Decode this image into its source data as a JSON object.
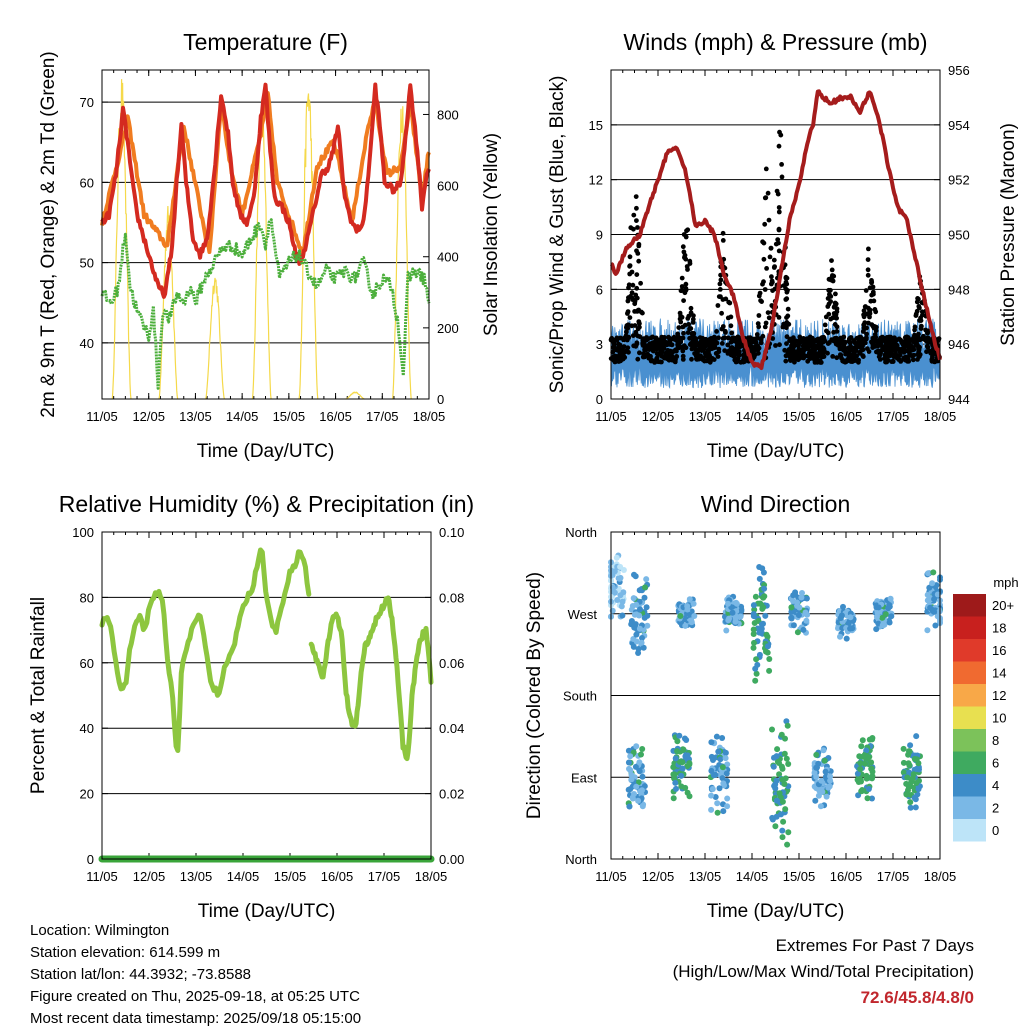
{
  "info": {
    "location": "Location: Wilmington",
    "elevation": "Station elevation: 614.599 m",
    "latlon": "Station lat/lon: 44.3932; -73.8588",
    "created": "Figure created on Thu, 2025-09-18, at 05:25 UTC",
    "recent": "Most recent data timestamp: 2025/09/18 05:15:00"
  },
  "extremes": {
    "title": "Extremes For Past 7 Days",
    "subtitle": "(High/Low/Max Wind/Total Precipitation)",
    "values": "72.6/45.8/4.8/0",
    "value_color": "#c1272d"
  },
  "x_ticks": [
    "11/05",
    "12/05",
    "13/05",
    "14/05",
    "15/05",
    "16/05",
    "17/05",
    "18/05"
  ],
  "chart_data": [
    {
      "type": "line",
      "title": "Temperature (F)",
      "xlabel": "Time (Day/UTC)",
      "ylabel": "2m & 9m T (Red, Orange) & 2m Td (Green)",
      "ylabel_right": "Solar Insolation (Yellow)",
      "ylim": [
        33,
        74
      ],
      "yticks": [
        40,
        50,
        60,
        70
      ],
      "ylim_right": [
        0,
        925
      ],
      "yticks_right": [
        0,
        200,
        400,
        600,
        800
      ],
      "x_range_days": [
        0,
        7
      ],
      "grid": true,
      "series": [
        {
          "color": "#d42a20",
          "x": [
            0,
            0.15,
            0.3,
            0.45,
            0.55,
            0.65,
            0.75,
            0.9,
            1.05,
            1.2,
            1.35,
            1.5,
            1.6,
            1.7,
            1.8,
            1.95,
            2.1,
            2.25,
            2.4,
            2.55,
            2.7,
            2.8,
            2.95,
            3.1,
            3.25,
            3.4,
            3.5,
            3.6,
            3.7,
            3.85,
            4.0,
            4.15,
            4.25,
            4.4,
            4.55,
            4.7,
            4.85,
            4.95,
            5.05,
            5.2,
            5.35,
            5.45,
            5.6,
            5.75,
            5.85,
            5.95,
            6.05,
            6.25,
            6.4,
            6.5,
            6.6,
            6.75,
            6.85,
            6.95,
            7.0
          ],
          "y": [
            55,
            56,
            61,
            69,
            65,
            60,
            56,
            53,
            50,
            47,
            46,
            52,
            60,
            67,
            60,
            53,
            51,
            53,
            61,
            71,
            66,
            60,
            56,
            55,
            58,
            68,
            72,
            64,
            58,
            57,
            55,
            51,
            50,
            53,
            57,
            61,
            62,
            64,
            67,
            58,
            55,
            54,
            55,
            64,
            72,
            67,
            60,
            59,
            60,
            66,
            72,
            64,
            57,
            61,
            62
          ]
        },
        {
          "color": "#f07c20",
          "x": [
            0,
            0.4,
            0.55,
            0.9,
            1.4,
            1.6,
            1.75,
            2.3,
            2.55,
            2.75,
            3.0,
            3.4,
            3.55,
            3.75,
            4.3,
            4.6,
            4.95,
            5.05,
            5.35,
            5.7,
            5.85,
            6.1,
            6.4,
            6.6,
            6.85,
            7.0
          ],
          "y": [
            55,
            64,
            68,
            56,
            52,
            61,
            67,
            51,
            70,
            62,
            56,
            66,
            71,
            60,
            51,
            62,
            65,
            63,
            55,
            67,
            70,
            61,
            62,
            70,
            58,
            64
          ]
        },
        {
          "color": "#4caf3c",
          "x": [
            0,
            0.2,
            0.35,
            0.5,
            0.6,
            0.75,
            0.9,
            1.0,
            1.1,
            1.2,
            1.3,
            1.45,
            1.6,
            1.75,
            1.9,
            2.0,
            2.2,
            2.4,
            2.6,
            2.8,
            3.0,
            3.2,
            3.4,
            3.5,
            3.6,
            3.8,
            4.0,
            4.2,
            4.4,
            4.6,
            4.8,
            5.0,
            5.2,
            5.4,
            5.6,
            5.8,
            6.0,
            6.2,
            6.35,
            6.45,
            6.55,
            6.7,
            6.9,
            7.0
          ],
          "y": [
            46,
            45,
            47,
            54,
            47,
            44,
            42,
            41,
            44,
            35,
            44,
            43,
            46,
            45,
            47,
            45,
            48,
            50,
            52,
            52,
            51,
            53,
            55,
            52,
            56,
            48,
            50,
            51,
            49,
            47,
            49,
            48,
            49,
            48,
            50,
            46,
            48,
            47,
            42,
            36,
            48,
            49,
            48,
            45
          ]
        }
      ],
      "insolation_peaks_days": [
        0.42,
        1.42,
        2.42,
        3.42,
        4.42,
        5.42,
        6.42
      ],
      "insolation_peak_values": [
        918,
        550,
        360,
        850,
        918,
        20,
        880
      ]
    },
    {
      "type": "scatter",
      "title": "Winds (mph) & Pressure (mb)",
      "xlabel": "Time (Day/UTC)",
      "ylabel": "Sonic/Prop Wind & Gust (Blue, Black)",
      "ylabel_right": "Station Pressure (Maroon)",
      "ylim": [
        0,
        18
      ],
      "yticks": [
        0,
        3,
        6,
        9,
        12,
        15
      ],
      "ylim_right": [
        944,
        956
      ],
      "yticks_right": [
        944,
        946,
        948,
        950,
        952,
        954,
        956
      ],
      "grid": true,
      "pressure": {
        "color": "#a51c1c",
        "x": [
          0,
          0.1,
          0.3,
          0.5,
          0.6,
          0.8,
          1.0,
          1.2,
          1.4,
          1.6,
          1.8,
          2.0,
          2.2,
          2.4,
          2.6,
          2.8,
          3.0,
          3.2,
          3.4,
          3.6,
          3.8,
          4.0,
          4.2,
          4.3,
          4.4,
          4.5,
          4.7,
          4.9,
          5.1,
          5.3,
          5.5,
          5.7,
          5.9,
          6.1,
          6.3,
          6.5,
          6.7,
          6.9,
          7.0
        ],
        "y": [
          949,
          948.5,
          949.4,
          949.8,
          949.9,
          951,
          952,
          953,
          953.2,
          952.2,
          950.3,
          950.5,
          950,
          948.6,
          947.8,
          946.3,
          945.3,
          945.2,
          946.4,
          948.5,
          950.5,
          951.8,
          953.5,
          954,
          955.2,
          955,
          954.8,
          955,
          955,
          954.5,
          955.2,
          954.2,
          952.5,
          951,
          950.5,
          949,
          947.4,
          946,
          945.5
        ]
      },
      "gust_color": "#000000",
      "wind_color": "#4a90d0",
      "gust_peaks": [
        {
          "day": 0.5,
          "max": 13.5
        },
        {
          "day": 1.6,
          "max": 11
        },
        {
          "day": 2.4,
          "max": 10
        },
        {
          "day": 3.3,
          "max": 14
        },
        {
          "day": 3.6,
          "max": 16
        },
        {
          "day": 4.7,
          "max": 8.5
        },
        {
          "day": 5.5,
          "max": 9
        },
        {
          "day": 6.6,
          "max": 7.5
        }
      ]
    },
    {
      "type": "line",
      "title": "Relative Humidity (%) & Precipitation (in)",
      "xlabel": "Time (Day/UTC)",
      "ylabel": "Percent & Total Rainfall",
      "ylim": [
        0,
        100
      ],
      "yticks": [
        0,
        20,
        40,
        60,
        80,
        100
      ],
      "ylim_right": [
        0,
        0.1
      ],
      "yticks_right": [
        "0.00",
        "0.02",
        "0.04",
        "0.06",
        "0.08",
        "0.10"
      ],
      "grid": true,
      "series": [
        {
          "color": "#8dc63f",
          "x": [
            0,
            0.1,
            0.2,
            0.3,
            0.4,
            0.5,
            0.6,
            0.7,
            0.8,
            0.9,
            1.0,
            1.1,
            1.2,
            1.3,
            1.4,
            1.5,
            1.6,
            1.7,
            1.8,
            1.9,
            2.0,
            2.1,
            2.2,
            2.3,
            2.4,
            2.5,
            2.6,
            2.7,
            2.8,
            2.9,
            3.0,
            3.1,
            3.2,
            3.3,
            3.4,
            3.5,
            3.6,
            3.7,
            3.8,
            3.9,
            4.0,
            4.1,
            4.2,
            4.3,
            4.4
          ],
          "y": [
            72,
            75,
            70,
            60,
            52,
            53,
            65,
            72,
            74,
            70,
            76,
            80,
            82,
            78,
            60,
            50,
            30,
            60,
            65,
            70,
            72,
            75,
            65,
            55,
            52,
            50,
            58,
            62,
            65,
            72,
            78,
            80,
            82,
            90,
            95,
            80,
            72,
            70,
            75,
            82,
            88,
            90,
            94,
            92,
            80
          ]
        },
        {
          "color": "#8dc63f",
          "x": [
            4.45,
            4.6,
            4.7,
            4.8,
            4.9,
            5.0,
            5.1,
            5.2,
            5.3,
            5.4,
            5.5,
            5.6,
            5.7,
            5.8,
            5.9,
            6.0,
            6.1,
            6.2,
            6.3,
            6.4,
            6.5,
            6.6,
            6.7,
            6.8,
            6.9,
            7.0
          ],
          "y": [
            65,
            60,
            55,
            65,
            73,
            75,
            68,
            50,
            42,
            40,
            55,
            65,
            68,
            72,
            75,
            78,
            80,
            70,
            55,
            35,
            30,
            50,
            62,
            68,
            70,
            55
          ]
        },
        {
          "color": "#3aa53a",
          "x": [
            0,
            7
          ],
          "y": [
            0,
            0
          ]
        }
      ]
    },
    {
      "type": "scatter",
      "title": "Wind Direction",
      "xlabel": "Time (Day/UTC)",
      "ylabel": "Direction (Colored By Speed)",
      "y_categories": [
        "North",
        "East",
        "South",
        "West",
        "North"
      ],
      "ylim": [
        0,
        360
      ],
      "grid": true,
      "colorbar": {
        "unit": "mph",
        "labels": [
          "20+",
          "18",
          "16",
          "14",
          "12",
          "10",
          "8",
          "6",
          "4",
          "2",
          "0"
        ],
        "colors": [
          "#9e1a1a",
          "#c8201e",
          "#e03a2a",
          "#f06a30",
          "#f8a848",
          "#e8e050",
          "#7cc25a",
          "#3faa60",
          "#3d8cc8",
          "#7ab8e6",
          "#bde4f8"
        ]
      },
      "clusters": [
        {
          "day": 0.1,
          "dir_center": 300,
          "spread": 30,
          "speed_class": 1
        },
        {
          "day": 0.6,
          "dir_center": 270,
          "spread": 40,
          "speed_class": 2
        },
        {
          "day": 0.55,
          "dir_center": 90,
          "spread": 30,
          "speed_class": 2
        },
        {
          "day": 1.5,
          "dir_center": 100,
          "spread": 30,
          "speed_class": 3
        },
        {
          "day": 1.6,
          "dir_center": 270,
          "spread": 15,
          "speed_class": 2
        },
        {
          "day": 2.3,
          "dir_center": 90,
          "spread": 40,
          "speed_class": 2
        },
        {
          "day": 2.6,
          "dir_center": 270,
          "spread": 15,
          "speed_class": 2
        },
        {
          "day": 3.2,
          "dir_center": 260,
          "spread": 50,
          "speed_class": 3
        },
        {
          "day": 3.6,
          "dir_center": 90,
          "spread": 60,
          "speed_class": 3
        },
        {
          "day": 4.0,
          "dir_center": 270,
          "spread": 20,
          "speed_class": 2
        },
        {
          "day": 4.5,
          "dir_center": 90,
          "spread": 30,
          "speed_class": 2
        },
        {
          "day": 5.0,
          "dir_center": 260,
          "spread": 15,
          "speed_class": 2
        },
        {
          "day": 5.4,
          "dir_center": 100,
          "spread": 30,
          "speed_class": 3
        },
        {
          "day": 5.8,
          "dir_center": 270,
          "spread": 15,
          "speed_class": 2
        },
        {
          "day": 6.4,
          "dir_center": 95,
          "spread": 35,
          "speed_class": 3
        },
        {
          "day": 6.9,
          "dir_center": 280,
          "spread": 30,
          "speed_class": 2
        }
      ]
    }
  ]
}
